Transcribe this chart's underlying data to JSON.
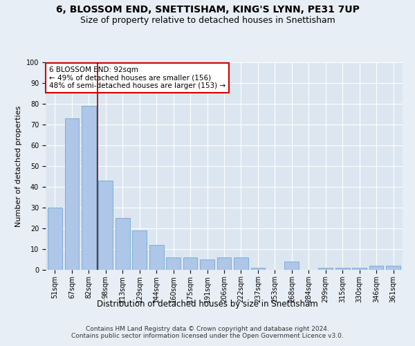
{
  "title": "6, BLOSSOM END, SNETTISHAM, KING'S LYNN, PE31 7UP",
  "subtitle": "Size of property relative to detached houses in Snettisham",
  "xlabel": "Distribution of detached houses by size in Snettisham",
  "ylabel": "Number of detached properties",
  "categories": [
    "51sqm",
    "67sqm",
    "82sqm",
    "98sqm",
    "113sqm",
    "129sqm",
    "144sqm",
    "160sqm",
    "175sqm",
    "191sqm",
    "206sqm",
    "222sqm",
    "237sqm",
    "253sqm",
    "268sqm",
    "284sqm",
    "299sqm",
    "315sqm",
    "330sqm",
    "346sqm",
    "361sqm"
  ],
  "values": [
    30,
    73,
    79,
    43,
    25,
    19,
    12,
    6,
    6,
    5,
    6,
    6,
    1,
    0,
    4,
    0,
    1,
    1,
    1,
    2,
    2
  ],
  "bar_color": "#aec6e8",
  "bar_edge_color": "#7aafd4",
  "vline_x": 2.5,
  "vline_color": "#8b0000",
  "annotation_text": "6 BLOSSOM END: 92sqm\n← 49% of detached houses are smaller (156)\n48% of semi-detached houses are larger (153) →",
  "annotation_box_color": "#ffffff",
  "annotation_box_edge": "#cc0000",
  "ylim": [
    0,
    100
  ],
  "yticks": [
    0,
    10,
    20,
    30,
    40,
    50,
    60,
    70,
    80,
    90,
    100
  ],
  "bg_color": "#e8eef5",
  "plot_bg_color": "#dce6f0",
  "footer": "Contains HM Land Registry data © Crown copyright and database right 2024.\nContains public sector information licensed under the Open Government Licence v3.0.",
  "title_fontsize": 10,
  "subtitle_fontsize": 9,
  "xlabel_fontsize": 8.5,
  "ylabel_fontsize": 8,
  "tick_fontsize": 7,
  "annotation_fontsize": 7.5,
  "footer_fontsize": 6.5
}
